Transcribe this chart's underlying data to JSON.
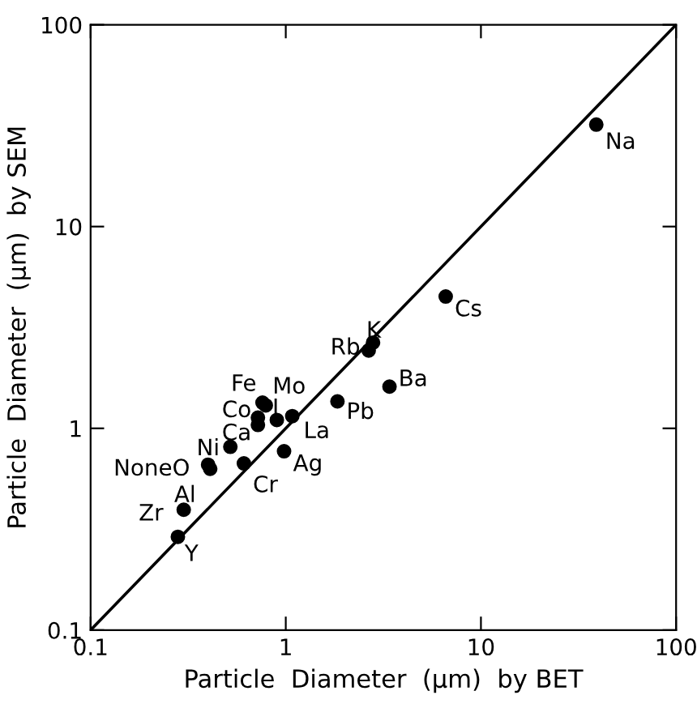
{
  "chart_data": {
    "type": "scatter",
    "xlabel": "Particle  Diameter  (μm)  by BET",
    "ylabel": "Particle  Diameter  (μm)  by SEM",
    "log": "xy",
    "xlim": [
      0.1,
      100
    ],
    "ylim": [
      0.1,
      100
    ],
    "xticks": [
      0.1,
      1,
      10,
      100
    ],
    "yticks": [
      0.1,
      1,
      10,
      100
    ],
    "grid": false,
    "series": [
      {
        "type": "line",
        "color": "#000000",
        "line_style": "solid",
        "marker": "none",
        "x": [
          0.1,
          100
        ],
        "values": [
          0.1,
          100
        ]
      },
      {
        "color": "#000000",
        "marker": "circle",
        "x": [
          39,
          6.6,
          2.8,
          2.66,
          3.4,
          1.84,
          1.08,
          0.9,
          0.76,
          0.79,
          0.72,
          0.72,
          0.52,
          0.61,
          0.98,
          0.4,
          0.41,
          0.3,
          0.28
        ],
        "values": [
          32,
          4.5,
          2.66,
          2.43,
          1.61,
          1.36,
          1.15,
          1.1,
          1.34,
          1.3,
          1.13,
          1.04,
          0.81,
          0.67,
          0.77,
          0.66,
          0.63,
          0.395,
          0.29
        ]
      }
    ],
    "annotations": [
      {
        "text": "Na",
        "x": 39,
        "y": 32
      },
      {
        "text": "Cs",
        "x": 6.6,
        "y": 4.5
      },
      {
        "text": "K",
        "x": 2.8,
        "y": 2.66
      },
      {
        "text": "Rb",
        "x": 2.66,
        "y": 2.43
      },
      {
        "text": "Ba",
        "x": 3.4,
        "y": 1.61
      },
      {
        "text": "Pb",
        "x": 1.84,
        "y": 1.36
      },
      {
        "text": "La",
        "x": 1.08,
        "y": 1.15
      },
      {
        "text": "I",
        "x": 0.9,
        "y": 1.1
      },
      {
        "text": "Fe",
        "x": 0.76,
        "y": 1.34
      },
      {
        "text": "Mo",
        "x": 0.79,
        "y": 1.3
      },
      {
        "text": "Co",
        "x": 0.72,
        "y": 1.13
      },
      {
        "text": "Ca",
        "x": 0.72,
        "y": 1.04
      },
      {
        "text": "Ni",
        "x": 0.52,
        "y": 0.81
      },
      {
        "text": "Cr",
        "x": 0.61,
        "y": 0.67
      },
      {
        "text": "Ag",
        "x": 0.98,
        "y": 0.77
      },
      {
        "text": "NoneO",
        "x": 0.4,
        "y": 0.66
      },
      {
        "text": "Al",
        "x": 0.41,
        "y": 0.63
      },
      {
        "text": "Zr",
        "x": 0.3,
        "y": 0.395
      },
      {
        "text": "Y",
        "x": 0.28,
        "y": 0.29
      }
    ]
  }
}
